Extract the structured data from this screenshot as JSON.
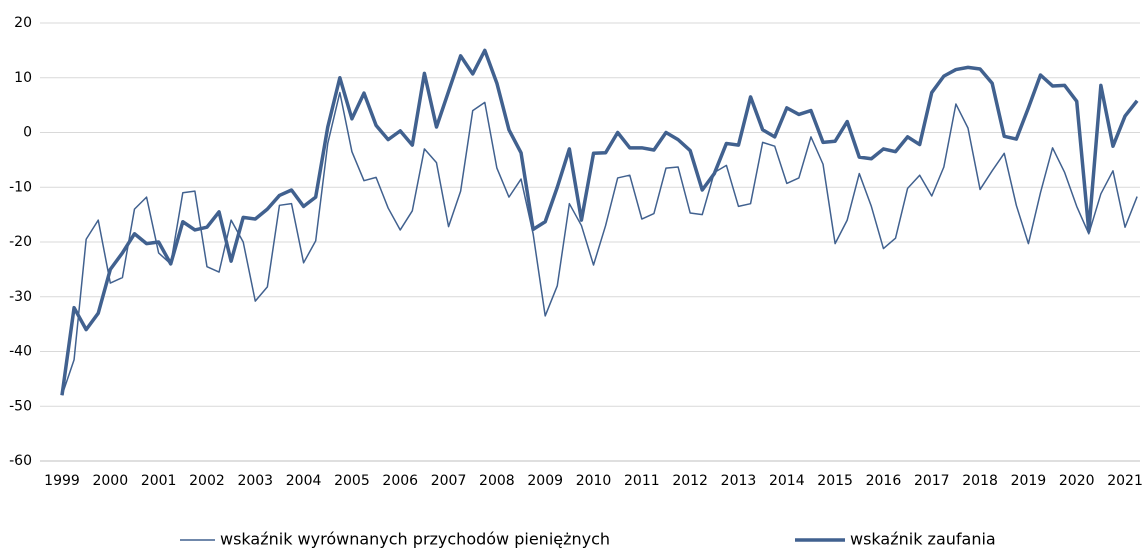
{
  "chart_data": {
    "type": "line",
    "categories": [
      "1999",
      null,
      null,
      null,
      "2000",
      null,
      null,
      null,
      "2001",
      null,
      null,
      null,
      "2002",
      null,
      null,
      null,
      "2003",
      null,
      null,
      null,
      "2004",
      null,
      null,
      null,
      "2005",
      null,
      null,
      null,
      "2006",
      null,
      null,
      null,
      "2007",
      null,
      null,
      null,
      "2008",
      null,
      null,
      null,
      "2009",
      null,
      null,
      null,
      "2010",
      null,
      null,
      null,
      "2011",
      null,
      null,
      null,
      "2012",
      null,
      null,
      null,
      "2013",
      null,
      null,
      null,
      "2014",
      null,
      null,
      null,
      "2015",
      null,
      null,
      null,
      "2016",
      null,
      null,
      null,
      "2017",
      null,
      null,
      null,
      "2018",
      null,
      null,
      null,
      "2019",
      null,
      null,
      null,
      "2020",
      null,
      null,
      null,
      "2021",
      null
    ],
    "series": [
      {
        "name": "wskaźnik wyrównanych przychodów pieniężnych",
        "color": "#41618f",
        "width": 1.5,
        "values": [
          -48,
          -41.5,
          -19.5,
          -16,
          -27.5,
          -26.5,
          -14,
          -11.8,
          -22,
          -24,
          -11,
          -10.7,
          -24.5,
          -25.5,
          -16,
          -20,
          -30.8,
          -28.2,
          -13.3,
          -13,
          -23.8,
          -19.8,
          -2,
          7.3,
          -3.5,
          -8.8,
          -8.2,
          -13.8,
          -17.8,
          -14.3,
          -3,
          -5.5,
          -17.2,
          -10.7,
          4,
          5.5,
          -6.5,
          -11.8,
          -8.5,
          -18.5,
          -33.5,
          -28,
          -13,
          -17,
          -24.2,
          -17,
          -8.3,
          -7.8,
          -15.8,
          -14.8,
          -6.5,
          -6.3,
          -14.7,
          -15,
          -7.3,
          -6,
          -13.5,
          -13,
          -1.8,
          -2.5,
          -9.3,
          -8.3,
          -0.8,
          -5.8,
          -20.3,
          -16,
          -7.5,
          -13.5,
          -21.2,
          -19.3,
          -10.2,
          -7.8,
          -11.6,
          -6.3,
          5.2,
          0.8,
          -10.4,
          -7,
          -3.8,
          -13.3,
          -20.3,
          -11,
          -2.8,
          -7.3,
          -13.5,
          -18.5,
          -11.2,
          -7,
          -17.3,
          -11.7
        ]
      },
      {
        "name": "wskaźnik zaufania",
        "color": "#41618f",
        "width": 3.5,
        "values": [
          -48,
          -32,
          -36,
          -33,
          -25,
          -22,
          -18.5,
          -20.3,
          -20,
          -24,
          -16.3,
          -17.8,
          -17.3,
          -14.5,
          -23.5,
          -15.5,
          -15.8,
          -14,
          -11.5,
          -10.5,
          -13.5,
          -11.8,
          1,
          10,
          2.5,
          7.2,
          1.3,
          -1.3,
          0.3,
          -2.3,
          10.8,
          1,
          7.5,
          14,
          10.7,
          15,
          9,
          0.5,
          -3.7,
          -17.7,
          -16.3,
          -10,
          -3,
          -16,
          -3.8,
          -3.7,
          0,
          -2.8,
          -2.8,
          -3.2,
          0,
          -1.3,
          -3.3,
          -10.5,
          -7.5,
          -2,
          -2.3,
          6.5,
          0.5,
          -0.8,
          4.5,
          3.3,
          4,
          -1.8,
          -1.6,
          2,
          -4.5,
          -4.8,
          -3,
          -3.5,
          -0.8,
          -2.2,
          7.3,
          10.3,
          11.5,
          11.9,
          11.6,
          9,
          -0.7,
          -1.2,
          4.5,
          10.5,
          8.5,
          8.6,
          5.7,
          -18,
          8.6,
          -2.5,
          3,
          5.8
        ]
      }
    ],
    "ylim": [
      -60,
      20
    ],
    "yticks": [
      -60,
      -50,
      -40,
      -30,
      -20,
      -10,
      0,
      10,
      20
    ],
    "grid": true
  }
}
